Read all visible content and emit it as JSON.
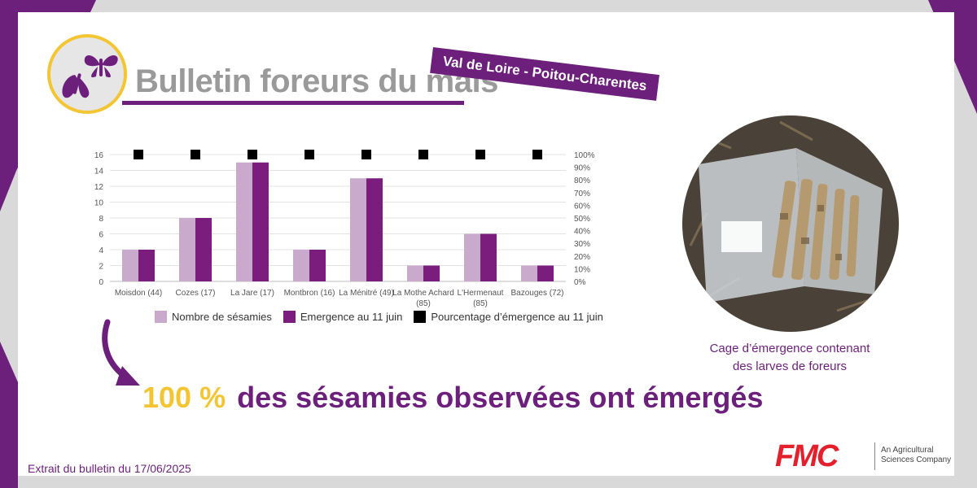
{
  "header": {
    "title": "Bulletin foreurs du maïs",
    "region": "Val de Loire - Poitou-Charentes"
  },
  "chart_data": {
    "type": "bar",
    "categories": [
      [
        "Moisdon (44)"
      ],
      [
        "Cozes (17)"
      ],
      [
        "La Jare (17)"
      ],
      [
        "Montbron (16)"
      ],
      [
        "La Ménitré (49)"
      ],
      [
        "La Mothe Achard",
        "(85)"
      ],
      [
        "L'Hermenaut",
        "(85)"
      ],
      [
        "Bazouges (72)"
      ]
    ],
    "series": [
      {
        "name": "Nombre de sésamies",
        "values": [
          4,
          8,
          15,
          4,
          13,
          2,
          6,
          2
        ],
        "color": "#c9a9cc",
        "axis": "left"
      },
      {
        "name": "Emergence au 11 juin",
        "values": [
          4,
          8,
          15,
          4,
          13,
          2,
          6,
          2
        ],
        "color": "#7b1d7c",
        "axis": "left"
      },
      {
        "name": "Pourcentage d’émergence au 11 juin",
        "values": [
          100,
          100,
          100,
          100,
          100,
          100,
          100,
          100
        ],
        "color": "#000000",
        "axis": "right",
        "marker": "square"
      }
    ],
    "y_left": {
      "lim": [
        0,
        16
      ],
      "ticks": [
        "0",
        "2",
        "4",
        "6",
        "8",
        "10",
        "12",
        "14",
        "16"
      ]
    },
    "y_right": {
      "lim": [
        0,
        100
      ],
      "ticks": [
        "0%",
        "10%",
        "20%",
        "30%",
        "40%",
        "50%",
        "60%",
        "70%",
        "80%",
        "90%",
        "100%"
      ]
    },
    "grid": true,
    "legend_position": "bottom"
  },
  "headline": {
    "percent": "100 %",
    "text": "des sésamies observées ont émergés"
  },
  "photo": {
    "caption_line1": "Cage d’émergence contenant",
    "caption_line2": "des larves de foreurs"
  },
  "footer": {
    "extract": "Extrait du bulletin du 17/06/2025"
  },
  "brand": {
    "logo": "FMC",
    "tagline_line1": "An Agricultural",
    "tagline_line2": "Sciences Company"
  },
  "colors": {
    "purple": "#6d1f7c",
    "yellow": "#f4c532",
    "light_purple": "#c9a9cc",
    "fmc_red": "#e4202d"
  }
}
